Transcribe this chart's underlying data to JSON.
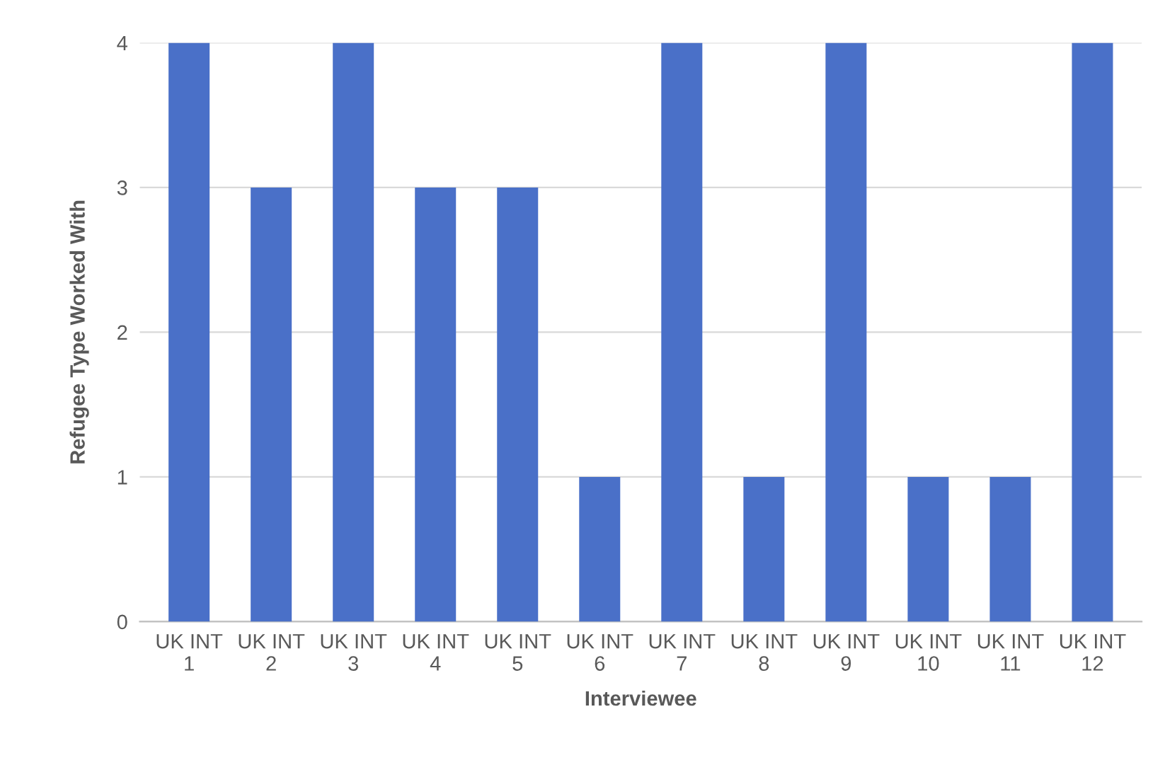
{
  "chart_data": {
    "type": "bar",
    "categories": [
      "UK INT\n1",
      "UK INT\n2",
      "UK INT\n3",
      "UK INT\n4",
      "UK INT\n5",
      "UK INT\n6",
      "UK INT\n7",
      "UK INT\n8",
      "UK INT\n9",
      "UK INT\n10",
      "UK INT\n11",
      "UK INT\n12"
    ],
    "values": [
      4,
      3,
      4,
      3,
      3,
      1,
      4,
      1,
      4,
      1,
      1,
      4
    ],
    "color": "#4a70c8",
    "xlabel": "Interviewee",
    "ylabel": "Refugee Type Worked With",
    "ylim": [
      0,
      4
    ],
    "yticks": [
      0,
      1,
      2,
      3,
      4
    ],
    "grid": "y",
    "legend": false
  }
}
